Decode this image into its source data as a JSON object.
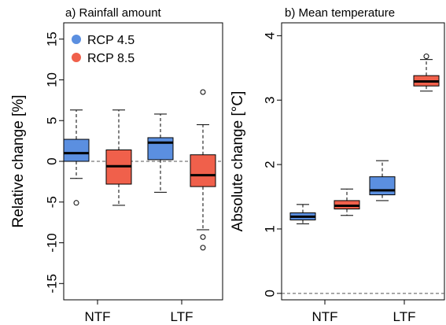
{
  "chart_data": [
    {
      "type": "box",
      "title": "a) Rainfall amount",
      "ylabel": "Relative change [%]",
      "ylim": [
        -17,
        17
      ],
      "yticks": [
        -15,
        -10,
        -5,
        0,
        5,
        10,
        15
      ],
      "categories": [
        "NTF",
        "LTF"
      ],
      "reference_line": 0,
      "legend": {
        "position": "top-left",
        "entries": [
          {
            "name": "RCP 4.5",
            "color": "#5b8fe0"
          },
          {
            "name": "RCP 8.5",
            "color": "#f0604b"
          }
        ]
      },
      "series": [
        {
          "name": "RCP 4.5",
          "color": "#5b8fe0",
          "boxes": [
            {
              "category": "NTF",
              "whisker_low": -2.1,
              "q1": 0.0,
              "median": 1.0,
              "q3": 2.7,
              "whisker_high": 6.3,
              "outliers": [
                -5.1
              ]
            },
            {
              "category": "LTF",
              "whisker_low": -3.8,
              "q1": 0.2,
              "median": 2.3,
              "q3": 2.9,
              "whisker_high": 5.8,
              "outliers": []
            }
          ]
        },
        {
          "name": "RCP 8.5",
          "color": "#f0604b",
          "boxes": [
            {
              "category": "NTF",
              "whisker_low": -5.4,
              "q1": -2.8,
              "median": -0.6,
              "q3": 1.4,
              "whisker_high": 6.3,
              "outliers": []
            },
            {
              "category": "LTF",
              "whisker_low": -8.4,
              "q1": -3.1,
              "median": -1.7,
              "q3": 0.8,
              "whisker_high": 4.5,
              "outliers": [
                8.5,
                -9.3,
                -10.6
              ]
            }
          ]
        }
      ]
    },
    {
      "type": "box",
      "title": "b) Mean temperature",
      "ylabel": "Absolute change [°C]",
      "ylim": [
        -0.1,
        4.2
      ],
      "yticks": [
        0,
        1,
        2,
        3,
        4
      ],
      "categories": [
        "NTF",
        "LTF"
      ],
      "reference_line": 0,
      "series": [
        {
          "name": "RCP 4.5",
          "color": "#5b8fe0",
          "boxes": [
            {
              "category": "NTF",
              "whisker_low": 1.08,
              "q1": 1.14,
              "median": 1.19,
              "q3": 1.25,
              "whisker_high": 1.38,
              "outliers": []
            },
            {
              "category": "LTF",
              "whisker_low": 1.44,
              "q1": 1.53,
              "median": 1.6,
              "q3": 1.81,
              "whisker_high": 2.06,
              "outliers": []
            }
          ]
        },
        {
          "name": "RCP 8.5",
          "color": "#f0604b",
          "boxes": [
            {
              "category": "NTF",
              "whisker_low": 1.21,
              "q1": 1.31,
              "median": 1.36,
              "q3": 1.44,
              "whisker_high": 1.62,
              "outliers": []
            },
            {
              "category": "LTF",
              "whisker_low": 3.14,
              "q1": 3.22,
              "median": 3.29,
              "q3": 3.38,
              "whisker_high": 3.63,
              "outliers": [
                3.68
              ]
            }
          ]
        }
      ]
    }
  ]
}
